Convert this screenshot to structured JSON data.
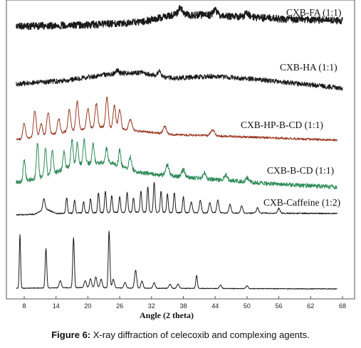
{
  "caption": {
    "prefix": "Figure 6:",
    "text": "X-ray diffraction of celecoxib and complexing agents."
  },
  "chart_data": {
    "type": "line",
    "xlabel": "Angle (2 theta)",
    "ylabel": "",
    "xlim": [
      5,
      70
    ],
    "xticks": [
      8,
      14,
      20,
      26,
      32,
      38,
      44,
      50,
      56,
      62,
      68
    ],
    "grid": false,
    "series": [
      {
        "name": "CXB-FA (1:1)",
        "color": "#1a1a1a",
        "x_start": 6.5,
        "x_end": 68,
        "baseline": [
          [
            6.5,
            37
          ],
          [
            20,
            35
          ],
          [
            30,
            31
          ],
          [
            36,
            21
          ],
          [
            42,
            21
          ],
          [
            50,
            24
          ],
          [
            58,
            27
          ],
          [
            68,
            29
          ]
        ],
        "noise": 5,
        "peaks": [
          [
            37.5,
            10,
            0.4
          ],
          [
            44,
            8,
            0.4
          ],
          [
            50,
            6,
            0.4
          ]
        ]
      },
      {
        "name": "CXB-HA (1:1)",
        "color": "#1a1a1a",
        "x_start": 6.5,
        "x_end": 68,
        "baseline": [
          [
            6.5,
            118
          ],
          [
            16,
            113
          ],
          [
            24,
            104
          ],
          [
            30,
            102
          ],
          [
            36,
            110
          ],
          [
            44,
            107
          ],
          [
            54,
            113
          ],
          [
            68,
            124
          ]
        ],
        "noise": 3.5,
        "peaks": [
          [
            33.5,
            6,
            0.3
          ],
          [
            25.5,
            5,
            0.3
          ]
        ]
      },
      {
        "name": "CXB-HP-B-CD (1:1)",
        "color": "#9b3a24",
        "x_start": 6.5,
        "x_end": 67,
        "baseline": [
          [
            6.5,
            196
          ],
          [
            10,
            193
          ],
          [
            16,
            185
          ],
          [
            22,
            178
          ],
          [
            28,
            183
          ],
          [
            36,
            189
          ],
          [
            48,
            192
          ],
          [
            67,
            197
          ]
        ],
        "noise": 1.6,
        "peaks": [
          [
            8,
            21,
            0.25
          ],
          [
            10,
            38,
            0.25
          ],
          [
            11.2,
            18,
            0.25
          ],
          [
            12.5,
            32,
            0.25
          ],
          [
            14.5,
            20,
            0.25
          ],
          [
            16.5,
            30,
            0.25
          ],
          [
            18,
            40,
            0.25
          ],
          [
            20,
            28,
            0.25
          ],
          [
            21.6,
            33,
            0.25
          ],
          [
            23.6,
            42,
            0.25
          ],
          [
            25,
            32,
            0.25
          ],
          [
            26,
            28,
            0.25
          ],
          [
            28,
            15,
            0.3
          ],
          [
            34.5,
            10,
            0.3
          ],
          [
            43.5,
            8,
            0.4
          ]
        ]
      },
      {
        "name": "CXB-B-CD (1:1)",
        "color": "#2e8b57",
        "x_start": 6.5,
        "x_end": 67,
        "baseline": [
          [
            6.5,
            256
          ],
          [
            12,
            248
          ],
          [
            18,
            230
          ],
          [
            24,
            228
          ],
          [
            30,
            243
          ],
          [
            40,
            250
          ],
          [
            54,
            258
          ],
          [
            67,
            263
          ]
        ],
        "noise": 3,
        "peaks": [
          [
            8,
            28,
            0.2
          ],
          [
            10.5,
            50,
            0.2
          ],
          [
            12,
            40,
            0.2
          ],
          [
            13.3,
            35,
            0.2
          ],
          [
            15.5,
            25,
            0.2
          ],
          [
            17,
            38,
            0.2
          ],
          [
            18,
            30,
            0.2
          ],
          [
            19.3,
            33,
            0.2
          ],
          [
            21,
            26,
            0.2
          ],
          [
            23.5,
            20,
            0.2
          ],
          [
            26,
            22,
            0.2
          ],
          [
            28,
            18,
            0.25
          ],
          [
            35,
            15,
            0.3
          ],
          [
            38,
            10,
            0.3
          ],
          [
            42,
            8,
            0.3
          ],
          [
            46,
            8,
            0.3
          ],
          [
            50,
            6,
            0.3
          ]
        ]
      },
      {
        "name": "CXB-Caffeine (1:2)",
        "color": "#1a1a1a",
        "x_start": 6.5,
        "x_end": 67,
        "baseline": [
          [
            6.5,
            302
          ],
          [
            10,
            301
          ],
          [
            12,
            293
          ],
          [
            14,
            300
          ],
          [
            20,
            299
          ],
          [
            30,
            298
          ],
          [
            40,
            299
          ],
          [
            67,
            300
          ]
        ],
        "noise": 0.8,
        "peaks": [
          [
            11.7,
            15,
            0.2
          ],
          [
            16,
            22,
            0.15
          ],
          [
            17.5,
            18,
            0.15
          ],
          [
            19.2,
            16,
            0.15
          ],
          [
            20.5,
            20,
            0.15
          ],
          [
            22,
            28,
            0.15
          ],
          [
            23.3,
            30,
            0.15
          ],
          [
            24.5,
            24,
            0.15
          ],
          [
            26,
            22,
            0.15
          ],
          [
            27.4,
            28,
            0.15
          ],
          [
            28.6,
            20,
            0.15
          ],
          [
            30,
            30,
            0.15
          ],
          [
            31.3,
            36,
            0.15
          ],
          [
            32.5,
            42,
            0.15
          ],
          [
            33.8,
            30,
            0.15
          ],
          [
            35,
            26,
            0.15
          ],
          [
            36.3,
            28,
            0.15
          ],
          [
            38,
            22,
            0.15
          ],
          [
            39.5,
            15,
            0.2
          ],
          [
            41.2,
            17,
            0.2
          ],
          [
            43,
            14,
            0.2
          ],
          [
            44.5,
            18,
            0.2
          ],
          [
            46.8,
            12,
            0.2
          ],
          [
            49,
            10,
            0.2
          ],
          [
            52,
            8,
            0.2
          ],
          [
            56,
            7,
            0.2
          ]
        ]
      },
      {
        "name": "",
        "color": "#1a1a1a",
        "x_start": 6.5,
        "x_end": 67,
        "baseline": [
          [
            6.5,
            405
          ],
          [
            20,
            404
          ],
          [
            30,
            405
          ],
          [
            67,
            406
          ]
        ],
        "noise": 0.5,
        "peaks": [
          [
            7.2,
            75,
            0.12
          ],
          [
            12.1,
            55,
            0.15
          ],
          [
            14.8,
            10,
            0.2
          ],
          [
            17.3,
            70,
            0.15
          ],
          [
            19.5,
            10,
            0.2
          ],
          [
            20.5,
            12,
            0.2
          ],
          [
            21.5,
            15,
            0.2
          ],
          [
            22.5,
            12,
            0.2
          ],
          [
            24,
            80,
            0.15
          ],
          [
            24.8,
            12,
            0.2
          ],
          [
            27,
            8,
            0.2
          ],
          [
            29,
            25,
            0.2
          ],
          [
            30.2,
            10,
            0.2
          ],
          [
            32.5,
            8,
            0.2
          ],
          [
            35.5,
            6,
            0.2
          ],
          [
            37,
            6,
            0.2
          ],
          [
            40.5,
            18,
            0.15
          ],
          [
            45,
            5,
            0.2
          ],
          [
            50,
            4,
            0.2
          ]
        ]
      }
    ],
    "series_labels": [
      {
        "text": "CXB-FA (1:1)",
        "series": 0
      },
      {
        "text": "CXB-HA (1:1)",
        "series": 1
      },
      {
        "text": "CXB-HP-B-CD (1:1)",
        "series": 2
      },
      {
        "text": "CXB-B-CD (1:1)",
        "series": 3
      },
      {
        "text": "CXB-Caffeine (1:2)",
        "series": 4
      }
    ]
  }
}
